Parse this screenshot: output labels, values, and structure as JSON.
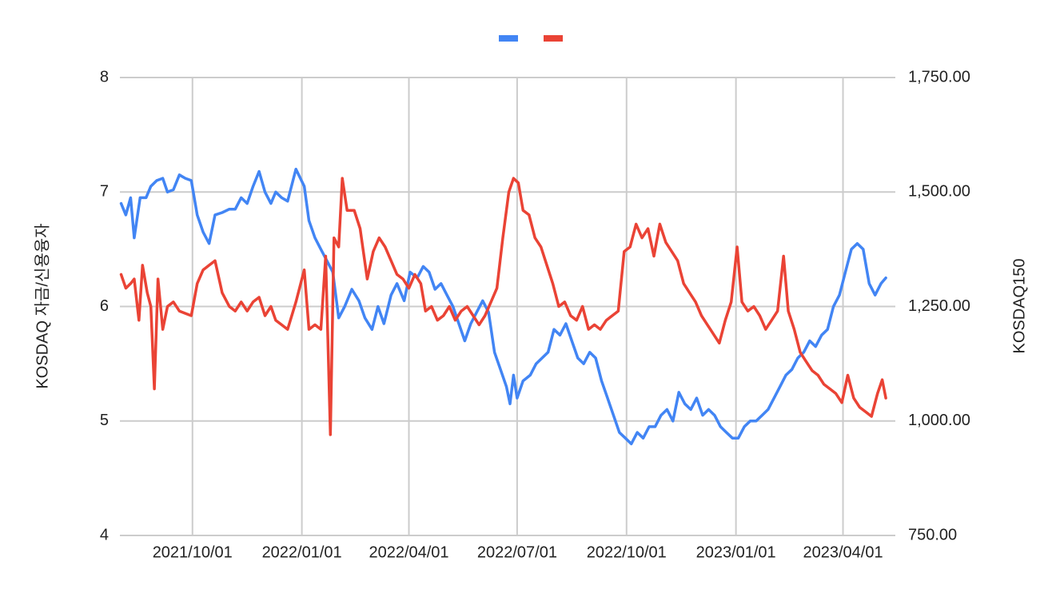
{
  "chart_data": {
    "type": "line",
    "title": "",
    "legend": {
      "placement": "top-center",
      "show_names": false
    },
    "grid": true,
    "x_axis": {
      "type": "date",
      "range": [
        "2021-08-01",
        "2023-05-15"
      ],
      "tick_labels": [
        "2021/10/01",
        "2022/01/01",
        "2022/04/01",
        "2022/07/01",
        "2022/10/01",
        "2023/01/01",
        "2023/04/01"
      ]
    },
    "y_left": {
      "label": "KOSDAQ 자금/신용융자",
      "range": [
        4,
        8
      ],
      "tick_labels": [
        "4",
        "5",
        "6",
        "7",
        "8"
      ]
    },
    "y_right": {
      "label": "KOSDAQ150",
      "range": [
        750,
        1750
      ],
      "tick_labels": [
        "750.00",
        "1,000.00",
        "1,250.00",
        "1,500.00",
        "1,750.00"
      ]
    },
    "series": [
      {
        "axis": "left",
        "color": "#4285f4",
        "points": [
          [
            "2021-08-02",
            6.9
          ],
          [
            "2021-08-06",
            6.8
          ],
          [
            "2021-08-10",
            6.95
          ],
          [
            "2021-08-13",
            6.6
          ],
          [
            "2021-08-18",
            6.95
          ],
          [
            "2021-08-23",
            6.95
          ],
          [
            "2021-08-27",
            7.05
          ],
          [
            "2021-09-01",
            7.1
          ],
          [
            "2021-09-06",
            7.12
          ],
          [
            "2021-09-10",
            7.0
          ],
          [
            "2021-09-15",
            7.02
          ],
          [
            "2021-09-20",
            7.15
          ],
          [
            "2021-09-25",
            7.12
          ],
          [
            "2021-09-30",
            7.1
          ],
          [
            "2021-10-05",
            6.8
          ],
          [
            "2021-10-10",
            6.65
          ],
          [
            "2021-10-15",
            6.55
          ],
          [
            "2021-10-20",
            6.8
          ],
          [
            "2021-10-26",
            6.82
          ],
          [
            "2021-11-01",
            6.85
          ],
          [
            "2021-11-06",
            6.85
          ],
          [
            "2021-11-11",
            6.95
          ],
          [
            "2021-11-16",
            6.9
          ],
          [
            "2021-11-21",
            7.05
          ],
          [
            "2021-11-26",
            7.18
          ],
          [
            "2021-12-01",
            7.0
          ],
          [
            "2021-12-06",
            6.9
          ],
          [
            "2021-12-10",
            7.0
          ],
          [
            "2021-12-15",
            6.95
          ],
          [
            "2021-12-20",
            6.92
          ],
          [
            "2021-12-27",
            7.2
          ],
          [
            "2022-01-03",
            7.05
          ],
          [
            "2022-01-07",
            6.75
          ],
          [
            "2022-01-12",
            6.6
          ],
          [
            "2022-01-17",
            6.5
          ],
          [
            "2022-01-22",
            6.4
          ],
          [
            "2022-01-27",
            6.3
          ],
          [
            "2022-02-01",
            5.9
          ],
          [
            "2022-02-06",
            6.0
          ],
          [
            "2022-02-12",
            6.15
          ],
          [
            "2022-02-18",
            6.05
          ],
          [
            "2022-02-23",
            5.9
          ],
          [
            "2022-03-01",
            5.8
          ],
          [
            "2022-03-06",
            6.0
          ],
          [
            "2022-03-11",
            5.85
          ],
          [
            "2022-03-17",
            6.1
          ],
          [
            "2022-03-22",
            6.2
          ],
          [
            "2022-03-28",
            6.05
          ],
          [
            "2022-04-02",
            6.3
          ],
          [
            "2022-04-08",
            6.25
          ],
          [
            "2022-04-13",
            6.35
          ],
          [
            "2022-04-18",
            6.3
          ],
          [
            "2022-04-23",
            6.15
          ],
          [
            "2022-04-28",
            6.2
          ],
          [
            "2022-05-03",
            6.1
          ],
          [
            "2022-05-08",
            6.0
          ],
          [
            "2022-05-13",
            5.85
          ],
          [
            "2022-05-18",
            5.7
          ],
          [
            "2022-05-23",
            5.85
          ],
          [
            "2022-05-28",
            5.95
          ],
          [
            "2022-06-02",
            6.05
          ],
          [
            "2022-06-07",
            5.95
          ],
          [
            "2022-06-12",
            5.6
          ],
          [
            "2022-06-17",
            5.45
          ],
          [
            "2022-06-22",
            5.3
          ],
          [
            "2022-06-25",
            5.15
          ],
          [
            "2022-06-28",
            5.4
          ],
          [
            "2022-07-01",
            5.2
          ],
          [
            "2022-07-06",
            5.35
          ],
          [
            "2022-07-12",
            5.4
          ],
          [
            "2022-07-17",
            5.5
          ],
          [
            "2022-07-22",
            5.55
          ],
          [
            "2022-07-27",
            5.6
          ],
          [
            "2022-08-01",
            5.8
          ],
          [
            "2022-08-06",
            5.75
          ],
          [
            "2022-08-11",
            5.85
          ],
          [
            "2022-08-16",
            5.7
          ],
          [
            "2022-08-21",
            5.55
          ],
          [
            "2022-08-26",
            5.5
          ],
          [
            "2022-08-31",
            5.6
          ],
          [
            "2022-09-05",
            5.55
          ],
          [
            "2022-09-10",
            5.35
          ],
          [
            "2022-09-15",
            5.2
          ],
          [
            "2022-09-20",
            5.05
          ],
          [
            "2022-09-25",
            4.9
          ],
          [
            "2022-09-30",
            4.85
          ],
          [
            "2022-10-05",
            4.8
          ],
          [
            "2022-10-10",
            4.9
          ],
          [
            "2022-10-15",
            4.85
          ],
          [
            "2022-10-20",
            4.95
          ],
          [
            "2022-10-25",
            4.95
          ],
          [
            "2022-10-30",
            5.05
          ],
          [
            "2022-11-04",
            5.1
          ],
          [
            "2022-11-09",
            5.0
          ],
          [
            "2022-11-14",
            5.25
          ],
          [
            "2022-11-19",
            5.15
          ],
          [
            "2022-11-24",
            5.1
          ],
          [
            "2022-11-29",
            5.2
          ],
          [
            "2022-12-04",
            5.05
          ],
          [
            "2022-12-09",
            5.1
          ],
          [
            "2022-12-14",
            5.05
          ],
          [
            "2022-12-19",
            4.95
          ],
          [
            "2022-12-24",
            4.9
          ],
          [
            "2022-12-29",
            4.85
          ],
          [
            "2023-01-03",
            4.85
          ],
          [
            "2023-01-08",
            4.95
          ],
          [
            "2023-01-13",
            5.0
          ],
          [
            "2023-01-18",
            5.0
          ],
          [
            "2023-01-23",
            5.05
          ],
          [
            "2023-01-28",
            5.1
          ],
          [
            "2023-02-02",
            5.2
          ],
          [
            "2023-02-07",
            5.3
          ],
          [
            "2023-02-12",
            5.4
          ],
          [
            "2023-02-17",
            5.45
          ],
          [
            "2023-02-22",
            5.55
          ],
          [
            "2023-02-27",
            5.6
          ],
          [
            "2023-03-04",
            5.7
          ],
          [
            "2023-03-09",
            5.65
          ],
          [
            "2023-03-14",
            5.75
          ],
          [
            "2023-03-19",
            5.8
          ],
          [
            "2023-03-24",
            6.0
          ],
          [
            "2023-03-29",
            6.1
          ],
          [
            "2023-04-03",
            6.3
          ],
          [
            "2023-04-08",
            6.5
          ],
          [
            "2023-04-13",
            6.55
          ],
          [
            "2023-04-18",
            6.5
          ],
          [
            "2023-04-23",
            6.2
          ],
          [
            "2023-04-28",
            6.1
          ],
          [
            "2023-05-03",
            6.2
          ],
          [
            "2023-05-07",
            6.25
          ]
        ]
      },
      {
        "axis": "right",
        "color": "#ea4335",
        "points": [
          [
            "2021-08-02",
            1320
          ],
          [
            "2021-08-06",
            1290
          ],
          [
            "2021-08-10",
            1300
          ],
          [
            "2021-08-13",
            1310
          ],
          [
            "2021-08-17",
            1220
          ],
          [
            "2021-08-20",
            1340
          ],
          [
            "2021-08-24",
            1280
          ],
          [
            "2021-08-27",
            1250
          ],
          [
            "2021-08-30",
            1070
          ],
          [
            "2021-09-02",
            1310
          ],
          [
            "2021-09-06",
            1200
          ],
          [
            "2021-09-10",
            1250
          ],
          [
            "2021-09-15",
            1260
          ],
          [
            "2021-09-20",
            1240
          ],
          [
            "2021-09-25",
            1235
          ],
          [
            "2021-09-30",
            1230
          ],
          [
            "2021-10-05",
            1300
          ],
          [
            "2021-10-10",
            1330
          ],
          [
            "2021-10-15",
            1340
          ],
          [
            "2021-10-20",
            1350
          ],
          [
            "2021-10-26",
            1280
          ],
          [
            "2021-11-01",
            1250
          ],
          [
            "2021-11-06",
            1240
          ],
          [
            "2021-11-11",
            1260
          ],
          [
            "2021-11-16",
            1240
          ],
          [
            "2021-11-21",
            1260
          ],
          [
            "2021-11-26",
            1270
          ],
          [
            "2021-12-01",
            1230
          ],
          [
            "2021-12-06",
            1250
          ],
          [
            "2021-12-10",
            1220
          ],
          [
            "2021-12-15",
            1210
          ],
          [
            "2021-12-20",
            1200
          ],
          [
            "2021-12-27",
            1260
          ],
          [
            "2022-01-03",
            1330
          ],
          [
            "2022-01-07",
            1200
          ],
          [
            "2022-01-12",
            1210
          ],
          [
            "2022-01-17",
            1200
          ],
          [
            "2022-01-21",
            1360
          ],
          [
            "2022-01-25",
            970
          ],
          [
            "2022-01-28",
            1400
          ],
          [
            "2022-02-01",
            1380
          ],
          [
            "2022-02-04",
            1530
          ],
          [
            "2022-02-08",
            1460
          ],
          [
            "2022-02-14",
            1460
          ],
          [
            "2022-02-19",
            1420
          ],
          [
            "2022-02-25",
            1310
          ],
          [
            "2022-03-02",
            1370
          ],
          [
            "2022-03-07",
            1400
          ],
          [
            "2022-03-12",
            1380
          ],
          [
            "2022-03-17",
            1350
          ],
          [
            "2022-03-22",
            1320
          ],
          [
            "2022-03-27",
            1310
          ],
          [
            "2022-04-01",
            1290
          ],
          [
            "2022-04-06",
            1320
          ],
          [
            "2022-04-11",
            1300
          ],
          [
            "2022-04-15",
            1240
          ],
          [
            "2022-04-20",
            1250
          ],
          [
            "2022-04-25",
            1220
          ],
          [
            "2022-04-30",
            1230
          ],
          [
            "2022-05-05",
            1250
          ],
          [
            "2022-05-10",
            1220
          ],
          [
            "2022-05-15",
            1240
          ],
          [
            "2022-05-20",
            1250
          ],
          [
            "2022-05-25",
            1230
          ],
          [
            "2022-05-30",
            1210
          ],
          [
            "2022-06-04",
            1230
          ],
          [
            "2022-06-09",
            1260
          ],
          [
            "2022-06-14",
            1290
          ],
          [
            "2022-06-19",
            1400
          ],
          [
            "2022-06-24",
            1500
          ],
          [
            "2022-06-28",
            1530
          ],
          [
            "2022-07-02",
            1520
          ],
          [
            "2022-07-06",
            1460
          ],
          [
            "2022-07-11",
            1450
          ],
          [
            "2022-07-16",
            1400
          ],
          [
            "2022-07-21",
            1380
          ],
          [
            "2022-07-26",
            1340
          ],
          [
            "2022-07-31",
            1300
          ],
          [
            "2022-08-05",
            1250
          ],
          [
            "2022-08-10",
            1260
          ],
          [
            "2022-08-15",
            1230
          ],
          [
            "2022-08-20",
            1220
          ],
          [
            "2022-08-25",
            1250
          ],
          [
            "2022-08-30",
            1200
          ],
          [
            "2022-09-04",
            1210
          ],
          [
            "2022-09-09",
            1200
          ],
          [
            "2022-09-14",
            1220
          ],
          [
            "2022-09-19",
            1230
          ],
          [
            "2022-09-24",
            1240
          ],
          [
            "2022-09-29",
            1370
          ],
          [
            "2022-10-04",
            1380
          ],
          [
            "2022-10-09",
            1430
          ],
          [
            "2022-10-14",
            1400
          ],
          [
            "2022-10-19",
            1420
          ],
          [
            "2022-10-24",
            1360
          ],
          [
            "2022-10-29",
            1430
          ],
          [
            "2022-11-03",
            1390
          ],
          [
            "2022-11-08",
            1370
          ],
          [
            "2022-11-13",
            1350
          ],
          [
            "2022-11-18",
            1300
          ],
          [
            "2022-11-23",
            1280
          ],
          [
            "2022-11-28",
            1260
          ],
          [
            "2022-12-03",
            1230
          ],
          [
            "2022-12-08",
            1210
          ],
          [
            "2022-12-13",
            1190
          ],
          [
            "2022-12-18",
            1170
          ],
          [
            "2022-12-23",
            1220
          ],
          [
            "2022-12-28",
            1260
          ],
          [
            "2023-01-02",
            1380
          ],
          [
            "2023-01-06",
            1260
          ],
          [
            "2023-01-11",
            1240
          ],
          [
            "2023-01-16",
            1250
          ],
          [
            "2023-01-21",
            1230
          ],
          [
            "2023-01-26",
            1200
          ],
          [
            "2023-01-31",
            1220
          ],
          [
            "2023-02-05",
            1240
          ],
          [
            "2023-02-10",
            1360
          ],
          [
            "2023-02-14",
            1240
          ],
          [
            "2023-02-19",
            1200
          ],
          [
            "2023-02-24",
            1150
          ],
          [
            "2023-03-01",
            1130
          ],
          [
            "2023-03-06",
            1110
          ],
          [
            "2023-03-11",
            1100
          ],
          [
            "2023-03-16",
            1080
          ],
          [
            "2023-03-21",
            1070
          ],
          [
            "2023-03-26",
            1060
          ],
          [
            "2023-03-31",
            1040
          ],
          [
            "2023-04-05",
            1100
          ],
          [
            "2023-04-10",
            1050
          ],
          [
            "2023-04-15",
            1030
          ],
          [
            "2023-04-20",
            1020
          ],
          [
            "2023-04-25",
            1010
          ],
          [
            "2023-04-30",
            1060
          ],
          [
            "2023-05-04",
            1090
          ],
          [
            "2023-05-07",
            1050
          ]
        ]
      }
    ]
  }
}
